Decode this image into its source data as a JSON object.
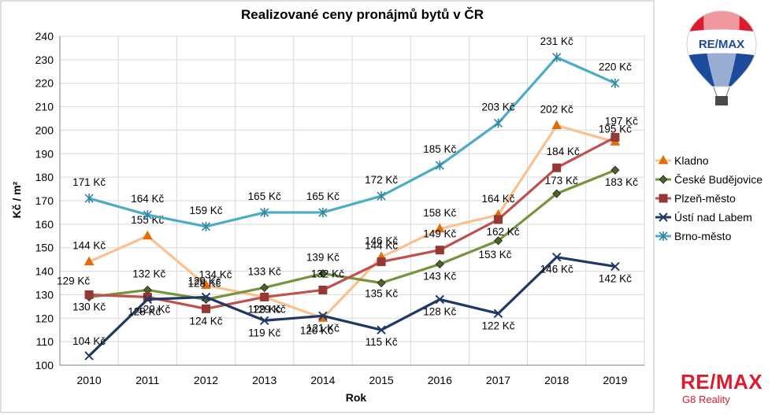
{
  "chart_data": {
    "type": "line",
    "title": "Realizované ceny pronájmů bytů v ČR",
    "xlabel": "Rok",
    "ylabel": "Kč / m²",
    "ylim": [
      100,
      240
    ],
    "yticks": [
      100,
      110,
      120,
      130,
      140,
      150,
      160,
      170,
      180,
      190,
      200,
      210,
      220,
      230,
      240
    ],
    "categories": [
      "2010",
      "2011",
      "2012",
      "2013",
      "2014",
      "2015",
      "2016",
      "2017",
      "2018",
      "2019"
    ],
    "grid": true,
    "legend_position": "right",
    "series": [
      {
        "name": "Kladno",
        "color": "#fac090",
        "marker_color": "#e36c09",
        "marker": "triangle",
        "values": [
          144,
          155,
          134,
          129,
          120,
          146,
          158,
          164,
          202,
          195
        ],
        "labels": [
          "144 Kč",
          "155 Kč",
          "134 Kč",
          "129 Kč",
          "120 Kč",
          "146 Kč",
          "158 Kč",
          "164 Kč",
          "202 Kč",
          "195 Kč"
        ]
      },
      {
        "name": "České Budějovice",
        "color": "#77933c",
        "marker_color": "#4f6228",
        "marker": "diamond",
        "values": [
          129,
          132,
          128,
          133,
          139,
          135,
          143,
          153,
          173,
          183
        ],
        "labels": [
          "129 Kč",
          "132 Kč",
          "128 Kč",
          "133 Kč",
          "139 Kč",
          "135 Kč",
          "143 Kč",
          "153 Kč",
          "173 Kč",
          "183 Kč"
        ]
      },
      {
        "name": "Plzeň-město",
        "color": "#c0504d",
        "marker_color": "#953735",
        "marker": "square",
        "values": [
          130,
          129,
          124,
          129,
          132,
          144,
          149,
          162,
          184,
          197
        ],
        "labels": [
          "130 Kč",
          "129 Kč",
          "124 Kč",
          "129 Kč",
          "132 Kč",
          "144 Kč",
          "149 Kč",
          "162 Kč",
          "184 Kč",
          "197 Kč"
        ]
      },
      {
        "name": "Ústí nad Labem",
        "color": "#1f3864",
        "marker_color": "#1f3864",
        "marker": "x",
        "values": [
          104,
          128,
          129,
          119,
          121,
          115,
          128,
          122,
          146,
          142
        ],
        "labels": [
          "104 Kč",
          "128 Kč",
          "129 Kč",
          "119 Kč",
          "121 Kč",
          "115 Kč",
          "128 Kč",
          "122 Kč",
          "146 Kč",
          "142 Kč"
        ]
      },
      {
        "name": "Brno-město",
        "color": "#4bacc6",
        "marker_color": "#31859c",
        "marker": "star",
        "values": [
          171,
          164,
          159,
          165,
          165,
          172,
          185,
          203,
          231,
          220
        ],
        "labels": [
          "171 Kč",
          "164 Kč",
          "159 Kč",
          "165 Kč",
          "165 Kč",
          "172 Kč",
          "185 Kč",
          "203 Kč",
          "231 Kč",
          "220 Kč"
        ]
      }
    ]
  },
  "brand": {
    "balloon_text": "RE/MAX",
    "name": "RE/MAX",
    "office": "G8 Reality",
    "color": "#dc1c2e",
    "blue": "#1b4b9a"
  }
}
